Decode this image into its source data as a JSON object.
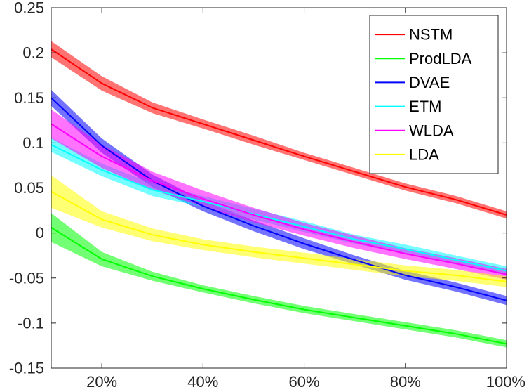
{
  "chart_data": {
    "type": "line",
    "title": "",
    "xlabel": "",
    "ylabel": "",
    "x": [
      10,
      20,
      30,
      40,
      50,
      60,
      70,
      80,
      90,
      100
    ],
    "xlim": [
      10,
      100
    ],
    "ylim": [
      -0.15,
      0.25
    ],
    "xticks": [
      20,
      40,
      60,
      80,
      100
    ],
    "xtick_labels": [
      "20%",
      "40%",
      "60%",
      "80%",
      "100%"
    ],
    "yticks": [
      -0.15,
      -0.1,
      -0.05,
      0,
      0.05,
      0.1,
      0.15,
      0.2,
      0.25
    ],
    "ytick_labels": [
      "-0.15",
      "-0.1",
      "-0.05",
      "0",
      "0.05",
      "0.1",
      "0.15",
      "0.2",
      "0.25"
    ],
    "grid": false,
    "legend_position": "top-right",
    "series": [
      {
        "name": "NSTM",
        "color": "#ff0000",
        "values": [
          0.204,
          0.166,
          0.139,
          0.121,
          0.103,
          0.085,
          0.068,
          0.051,
          0.037,
          0.02
        ],
        "band": [
          0.009,
          0.008,
          0.006,
          0.005,
          0.005,
          0.004,
          0.004,
          0.004,
          0.004,
          0.004
        ]
      },
      {
        "name": "ProdLDA",
        "color": "#00ff00",
        "values": [
          0.006,
          -0.029,
          -0.048,
          -0.062,
          -0.074,
          -0.085,
          -0.094,
          -0.103,
          -0.112,
          -0.123
        ],
        "band": [
          0.016,
          0.008,
          0.005,
          0.004,
          0.004,
          0.004,
          0.004,
          0.004,
          0.004,
          0.004
        ]
      },
      {
        "name": "DVAE",
        "color": "#0000ff",
        "values": [
          0.15,
          0.097,
          0.058,
          0.03,
          0.008,
          -0.012,
          -0.03,
          -0.047,
          -0.06,
          -0.075
        ],
        "band": [
          0.009,
          0.008,
          0.007,
          0.006,
          0.006,
          0.006,
          0.005,
          0.005,
          0.005,
          0.005
        ]
      },
      {
        "name": "ETM",
        "color": "#00ffff",
        "values": [
          0.098,
          0.07,
          0.048,
          0.035,
          0.021,
          0.007,
          -0.007,
          -0.018,
          -0.03,
          -0.042
        ],
        "band": [
          0.008,
          0.007,
          0.007,
          0.006,
          0.006,
          0.006,
          0.005,
          0.005,
          0.005,
          0.005
        ]
      },
      {
        "name": "WLDA",
        "color": "#ff00ff",
        "values": [
          0.121,
          0.085,
          0.058,
          0.038,
          0.02,
          0.004,
          -0.01,
          -0.023,
          -0.034,
          -0.046
        ],
        "band": [
          0.016,
          0.013,
          0.01,
          0.009,
          0.008,
          0.007,
          0.007,
          0.006,
          0.006,
          0.006
        ]
      },
      {
        "name": "LDA",
        "color": "#ffff00",
        "values": [
          0.046,
          0.015,
          -0.002,
          -0.013,
          -0.021,
          -0.028,
          -0.035,
          -0.042,
          -0.047,
          -0.054
        ],
        "band": [
          0.018,
          0.009,
          0.007,
          0.006,
          0.006,
          0.006,
          0.006,
          0.006,
          0.006,
          0.006
        ]
      }
    ]
  }
}
